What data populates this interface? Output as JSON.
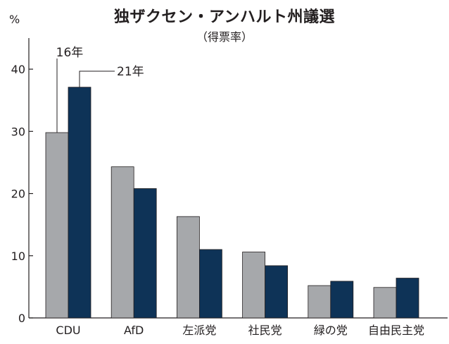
{
  "chart_data": {
    "type": "bar",
    "title": "独ザクセン・アンハルト州議選",
    "subtitle": "（得票率）",
    "ylabel": "%",
    "ylim": [
      0,
      45
    ],
    "yticks": [
      0,
      10,
      20,
      30,
      40
    ],
    "grid": false,
    "categories": [
      "CDU",
      "AfD",
      "左派党",
      "社民党",
      "緑の党",
      "自由民主党"
    ],
    "series": [
      {
        "name": "16年",
        "color": "#a6a8ab",
        "values": [
          29.8,
          24.3,
          16.3,
          10.6,
          5.2,
          4.9
        ]
      },
      {
        "name": "21年",
        "color": "#0e3357",
        "values": [
          37.1,
          20.8,
          11.0,
          8.4,
          5.9,
          6.4
        ]
      }
    ],
    "legend_placement": "annotations on first category bars"
  }
}
